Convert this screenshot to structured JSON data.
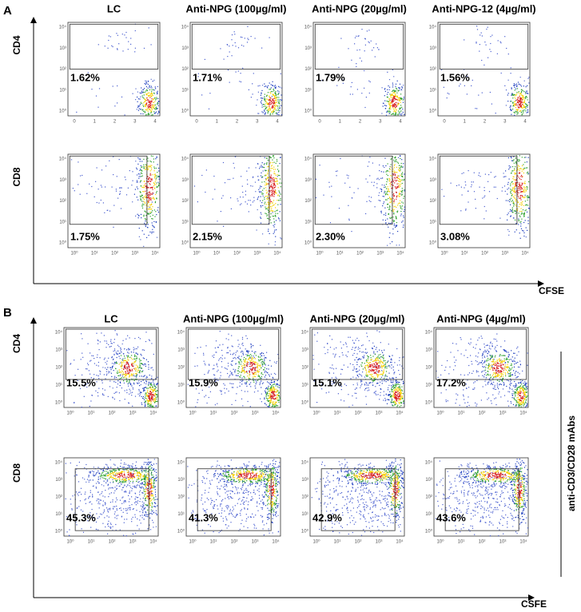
{
  "panels": [
    {
      "label": "A",
      "columns": [
        "LC",
        "Anti-NPG (100µg/ml)",
        "Anti-NPG (20µg/ml)",
        "Anti-NPG-12 (4µg/ml)"
      ],
      "rows": [
        {
          "marker": "CD4",
          "gates": [
            "1.62%",
            "1.71%",
            "1.79%",
            "1.56%"
          ]
        },
        {
          "marker": "CD8",
          "gates": [
            "1.75%",
            "2.15%",
            "2.30%",
            "3.08%"
          ]
        }
      ],
      "x_label": "CFSE"
    },
    {
      "label": "B",
      "columns": [
        "LC",
        "Anti-NPG (100µg/ml)",
        "Anti-NPG (20µg/ml)",
        "Anti-NPG (4µg/ml)"
      ],
      "rows": [
        {
          "marker": "CD4",
          "gates": [
            "15.5%",
            "15.9%",
            "15.1%",
            "17.2%"
          ]
        },
        {
          "marker": "CD8",
          "gates": [
            "45.3%",
            "41.3%",
            "42.9%",
            "43.6%"
          ]
        }
      ],
      "x_label": "CSFE",
      "side_label": "anti-CD3/CD28 mAbs"
    }
  ],
  "log_ticks": [
    "10⁰",
    "10¹",
    "10²",
    "10³",
    "10⁴"
  ],
  "linear_ticks": [
    "0",
    "1",
    "2",
    "3",
    "4"
  ]
}
